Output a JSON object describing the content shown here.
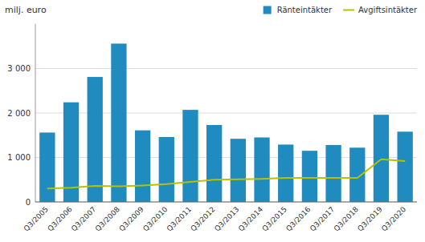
{
  "chart_data": {
    "type": "bar",
    "ylabel": "milj. euro",
    "categories": [
      "Q3/2005",
      "Q3/2006",
      "Q3/2007",
      "Q3/2008",
      "Q3/2009",
      "Q3/2010",
      "Q3/2011",
      "Q3/2012",
      "Q3/2013",
      "Q3/2014",
      "Q3/2015",
      "Q3/2016",
      "Q3/2017",
      "Q3/2018",
      "Q3/2019",
      "Q3/2020"
    ],
    "series": [
      {
        "name": "Ränteintäkter",
        "type": "bar",
        "color": "#1f8bbf",
        "values": [
          1560,
          2240,
          2810,
          3560,
          1610,
          1460,
          2070,
          1730,
          1420,
          1450,
          1290,
          1150,
          1280,
          1220,
          1960,
          1580
        ]
      },
      {
        "name": "Avgiftsintäkter",
        "type": "line",
        "color": "#b5c200",
        "values": [
          300,
          320,
          360,
          350,
          370,
          400,
          450,
          500,
          510,
          520,
          540,
          540,
          540,
          540,
          960,
          920
        ]
      }
    ],
    "ylim": [
      0,
      4000
    ],
    "yticks": [
      0,
      {
        "value": 1000,
        "label": "1 000"
      },
      {
        "value": 2000,
        "label": "2 000"
      },
      {
        "value": 3000,
        "label": "3 000"
      }
    ],
    "grid": true,
    "legend": "upper right"
  }
}
